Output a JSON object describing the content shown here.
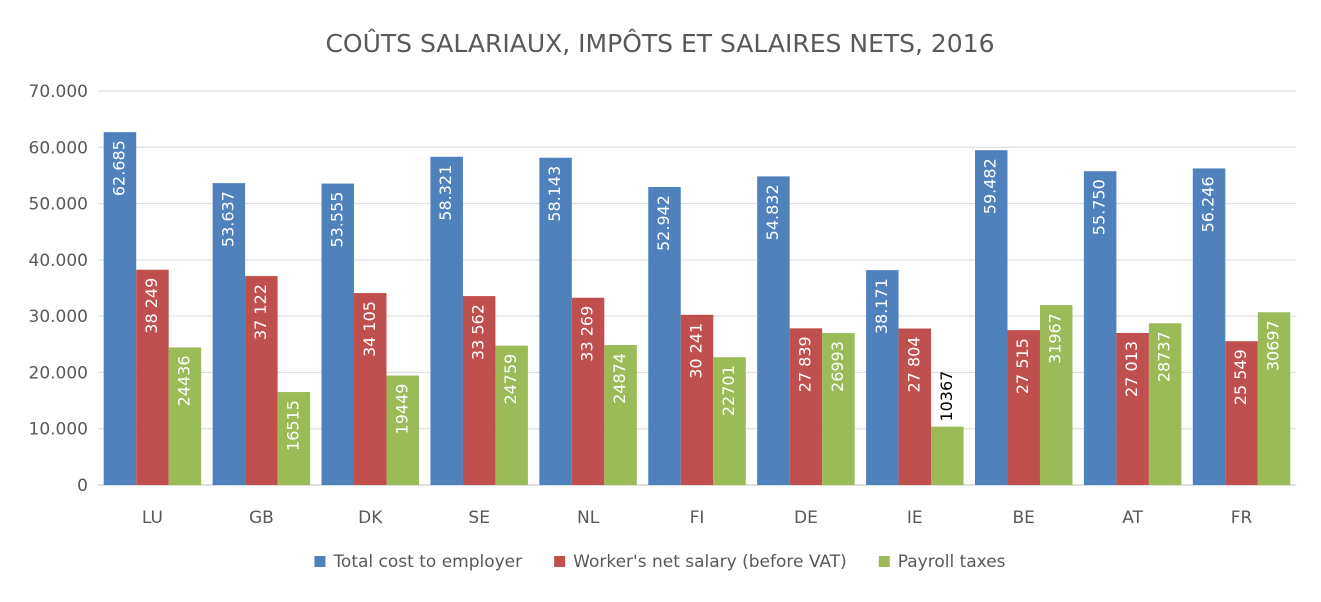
{
  "chart_data": {
    "type": "bar",
    "title": "COÛTS SALARIAUX, IMPÔTS ET SALAIRES NETS, 2016",
    "categories": [
      "LU",
      "GB",
      "DK",
      "SE",
      "NL",
      "FI",
      "DE",
      "IE",
      "BE",
      "AT",
      "FR"
    ],
    "ylim": [
      0,
      70000
    ],
    "yticks": [
      0,
      10000,
      20000,
      30000,
      40000,
      50000,
      60000,
      70000
    ],
    "ytick_labels": [
      "0",
      "10.000",
      "20.000",
      "30.000",
      "40.000",
      "50.000",
      "60.000",
      "70.000"
    ],
    "grid": true,
    "legend_position": "bottom",
    "series": [
      {
        "name": "Total cost to employer",
        "color": "#4f81bd",
        "label_color": "#ffffff",
        "values": [
          62685,
          53637,
          53555,
          58321,
          58143,
          52942,
          54832,
          38171,
          59482,
          55750,
          56246
        ],
        "labels": [
          "62.685",
          "53.637",
          "53.555",
          "58.321",
          "58.143",
          "52.942",
          "54.832",
          "38.171",
          "59.482",
          "55.750",
          "56.246"
        ]
      },
      {
        "name": "Worker's net salary (before VAT)",
        "color": "#c0504d",
        "label_color": "#ffffff",
        "values": [
          38249,
          37122,
          34105,
          33562,
          33269,
          30241,
          27839,
          27804,
          27515,
          27013,
          25549
        ],
        "labels": [
          "38 249",
          "37 122",
          "34 105",
          "33 562",
          "33 269",
          "30 241",
          "27 839",
          "27 804",
          "27 515",
          "27 013",
          "25 549"
        ]
      },
      {
        "name": "Payroll taxes",
        "color": "#9bbb59",
        "label_color": "#ffffff",
        "values": [
          24436,
          16515,
          19449,
          24759,
          24874,
          22701,
          26993,
          10367,
          31967,
          28737,
          30697
        ],
        "labels": [
          "24436",
          "16515",
          "19449",
          "24759",
          "24874",
          "22701",
          "26993",
          "10367",
          "31967",
          "28737",
          "30697"
        ]
      }
    ]
  }
}
